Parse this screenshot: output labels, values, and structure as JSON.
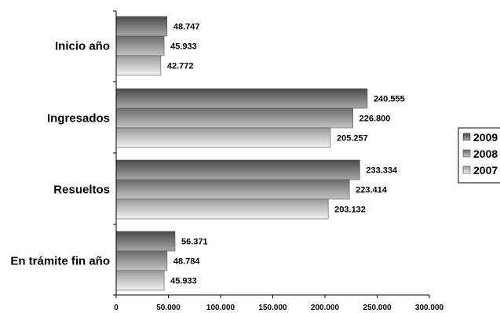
{
  "chart_data": {
    "type": "bar",
    "orientation": "horizontal",
    "title": "",
    "xlabel": "",
    "ylabel": "",
    "categories": [
      "Inicio año",
      "Ingresados",
      "Resueltos",
      "En trámite fin año"
    ],
    "series": [
      {
        "name": "2009",
        "values": [
          48747,
          240555,
          233334,
          56371
        ],
        "labels": [
          "48.747",
          "240.555",
          "233.334",
          "56.371"
        ],
        "color_dark": "#4a4a4a",
        "color_light": "#a8a8a8"
      },
      {
        "name": "2008",
        "values": [
          45933,
          226800,
          223414,
          48784
        ],
        "labels": [
          "45.933",
          "226.800",
          "223.414",
          "48.784"
        ],
        "color_dark": "#6b6b6b",
        "color_light": "#c4c4c4"
      },
      {
        "name": "2007",
        "values": [
          42772,
          205257,
          203132,
          45933
        ],
        "labels": [
          "42.772",
          "205.257",
          "203.132",
          "45.933"
        ],
        "color_dark": "#9a9a9a",
        "color_light": "#f2f2f2"
      }
    ],
    "xlim": [
      0,
      300000
    ],
    "xticks": [
      0,
      50000,
      100000,
      150000,
      200000,
      250000,
      300000
    ],
    "xtick_labels": [
      "0",
      "50.000",
      "100.000",
      "150.000",
      "200.000",
      "250.000",
      "300.000"
    ],
    "grid": false,
    "legend": {
      "placement": "right",
      "entries": [
        "2009",
        "2008",
        "2007"
      ]
    }
  }
}
